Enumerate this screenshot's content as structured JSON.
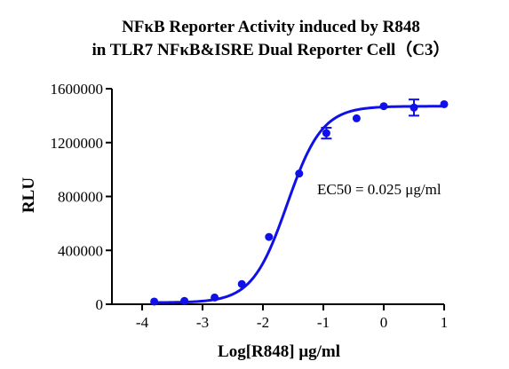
{
  "chart_data": {
    "type": "scatter",
    "title": "NFκB Reporter Activity induced by R848",
    "subtitle": "in TLR7 NFκB&ISRE Dual Reporter Cell（C3）",
    "xlabel": "Log[R848] μg/ml",
    "ylabel": "RLU",
    "xlim": [
      -4.5,
      1
    ],
    "ylim": [
      0,
      1600000
    ],
    "x_ticks": [
      -4,
      -3,
      -2,
      -1,
      0,
      1
    ],
    "x_tick_labels": [
      "-4",
      "-3",
      "-2",
      "-1",
      "0",
      "1"
    ],
    "y_ticks": [
      0,
      400000,
      800000,
      1200000,
      1600000
    ],
    "y_tick_labels": [
      "0",
      "400000",
      "800000",
      "1200000",
      "1600000"
    ],
    "annotation": "EC50 = 0.025 μg/ml",
    "grid": false,
    "color": "#1010e8",
    "series": [
      {
        "x": [
          -3.8,
          -3.3,
          -2.8,
          -2.35,
          -1.9,
          -1.4,
          -0.95,
          -0.45,
          0.0,
          0.5,
          1.0
        ],
        "y": [
          20000,
          25000,
          50000,
          150000,
          500000,
          970000,
          1270000,
          1380000,
          1470000,
          1460000,
          1485000
        ],
        "error": [
          0,
          0,
          0,
          0,
          0,
          0,
          40000,
          0,
          0,
          60000,
          0
        ]
      }
    ],
    "fit_curve": {
      "type": "4PL",
      "bottom": 12000,
      "top": 1470000,
      "log_ec50": -1.6,
      "hill": 1.5
    }
  }
}
